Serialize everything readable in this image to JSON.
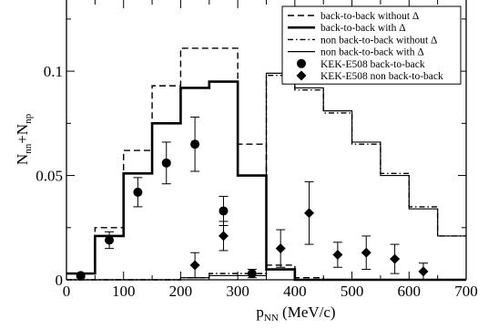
{
  "chart_data": {
    "type": "line",
    "xlabel": "p",
    "xlabel_sub": "NN",
    "xlabel_unit": " (MeV/c)",
    "ylabel_a": "N",
    "ylabel_a_sub": "nn",
    "ylabel_b": "+N",
    "ylabel_b_sub": "np",
    "xlim": [
      0,
      700
    ],
    "ylim": [
      0,
      0.135
    ],
    "x_ticks": [
      0,
      100,
      200,
      300,
      400,
      500,
      600,
      700
    ],
    "x_tick_labels": [
      "0",
      "100",
      "200",
      "300",
      "400",
      "500",
      "600",
      "700"
    ],
    "y_ticks": [
      0,
      0.05,
      0.1
    ],
    "y_tick_labels": [
      "0",
      "0.05",
      "0.1"
    ],
    "legend_position": "top-right",
    "bin_edges": [
      0,
      50,
      100,
      150,
      200,
      250,
      300,
      350,
      400,
      450,
      500,
      550,
      600,
      650,
      700
    ],
    "series": [
      {
        "name": "back-to-back without Δ",
        "style": "dashed",
        "values": [
          0.003,
          0.025,
          0.062,
          0.093,
          0.111,
          0.111,
          0.065,
          0.007,
          0.001,
          0,
          0,
          0,
          0,
          0
        ]
      },
      {
        "name": "back-to-back with Δ",
        "style": "solid-thick",
        "values": [
          0.003,
          0.021,
          0.051,
          0.075,
          0.092,
          0.095,
          0.05,
          0.005,
          0,
          0,
          0,
          0,
          0,
          0
        ]
      },
      {
        "name": "non back-to-back without Δ",
        "style": "dashdot",
        "values": [
          0,
          0,
          0,
          0,
          0.001,
          0.003,
          0.003,
          0.098,
          0.091,
          0.08,
          0.065,
          0.051,
          0.035,
          0.021
        ]
      },
      {
        "name": "non back-to-back with Δ",
        "style": "solid-thin",
        "values": [
          0,
          0,
          0,
          0,
          0.001,
          0.002,
          0.002,
          0.099,
          0.092,
          0.081,
          0.066,
          0.05,
          0.034,
          0.021
        ]
      }
    ],
    "points": [
      {
        "name": "KEK-E508 back-to-back",
        "marker": "circle",
        "x": [
          25,
          75,
          125,
          175,
          225,
          275,
          325
        ],
        "y": [
          0.002,
          0.019,
          0.042,
          0.056,
          0.065,
          0.033,
          0.003
        ],
        "yerr": [
          0.001,
          0.004,
          0.007,
          0.01,
          0.013,
          0.007,
          0.002
        ]
      },
      {
        "name": "KEK-E508 non back-to-back",
        "marker": "diamond",
        "x": [
          225,
          275,
          375,
          425,
          475,
          525,
          575,
          625
        ],
        "y": [
          0.007,
          0.021,
          0.015,
          0.032,
          0.012,
          0.013,
          0.01,
          0.004
        ],
        "yerr": [
          0.006,
          0.007,
          0.009,
          0.015,
          0.006,
          0.008,
          0.007,
          0.004
        ]
      }
    ]
  }
}
